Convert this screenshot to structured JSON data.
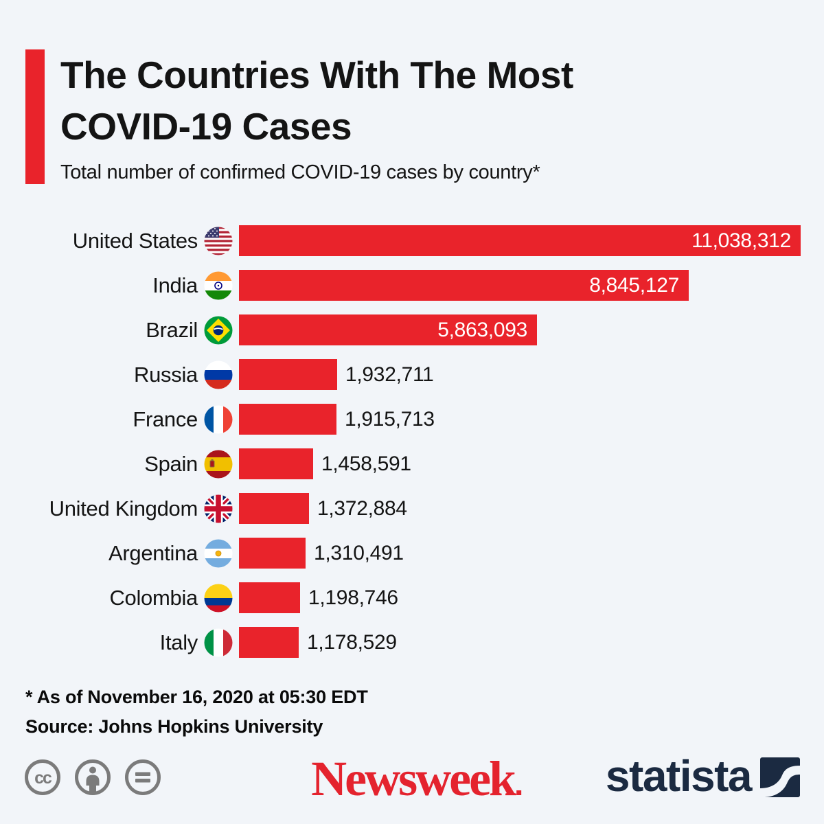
{
  "header": {
    "title_lines": [
      "The Countries With The Most",
      "COVID-19 Cases"
    ],
    "subtitle": "Total number of confirmed COVID-19 cases by country*"
  },
  "chart_data": {
    "type": "bar",
    "orientation": "horizontal",
    "title": "The Countries With The Most COVID-19 Cases",
    "subtitle": "Total number of confirmed COVID-19 cases by country*",
    "categories": [
      "United States",
      "India",
      "Brazil",
      "Russia",
      "France",
      "Spain",
      "United Kingdom",
      "Argentina",
      "Colombia",
      "Italy"
    ],
    "values": [
      11038312,
      8845127,
      5863093,
      1932711,
      1915713,
      1458591,
      1372884,
      1310491,
      1198746,
      1178529
    ],
    "value_labels": [
      "11,038,312",
      "8,845,127",
      "5,863,093",
      "1,932,711",
      "1,915,713",
      "1,458,591",
      "1,372,884",
      "1,310,491",
      "1,198,746",
      "1,178,529"
    ],
    "flags": [
      "us",
      "in",
      "br",
      "ru",
      "fr",
      "es",
      "gb",
      "ar",
      "co",
      "it"
    ],
    "bar_color": "#e9232b",
    "xlim": [
      0,
      11038312
    ],
    "grid": false,
    "legend": false
  },
  "notes": {
    "asterisk_note": "* As of November 16, 2020 at 05:30 EDT",
    "source": "Source: Johns Hopkins University"
  },
  "branding": {
    "cc_icons": [
      "cc-icon",
      "cc-by-person-icon",
      "cc-nd-equals-icon"
    ],
    "newsweek": "Newsweek",
    "statista": "statista"
  },
  "colors": {
    "background": "#f2f5f9",
    "bar": "#e9232b",
    "accent_bar": "#e9232b",
    "newsweek_red": "#e4232e",
    "statista_navy": "#1b2a41",
    "cc_gray": "#7b7b7b"
  }
}
